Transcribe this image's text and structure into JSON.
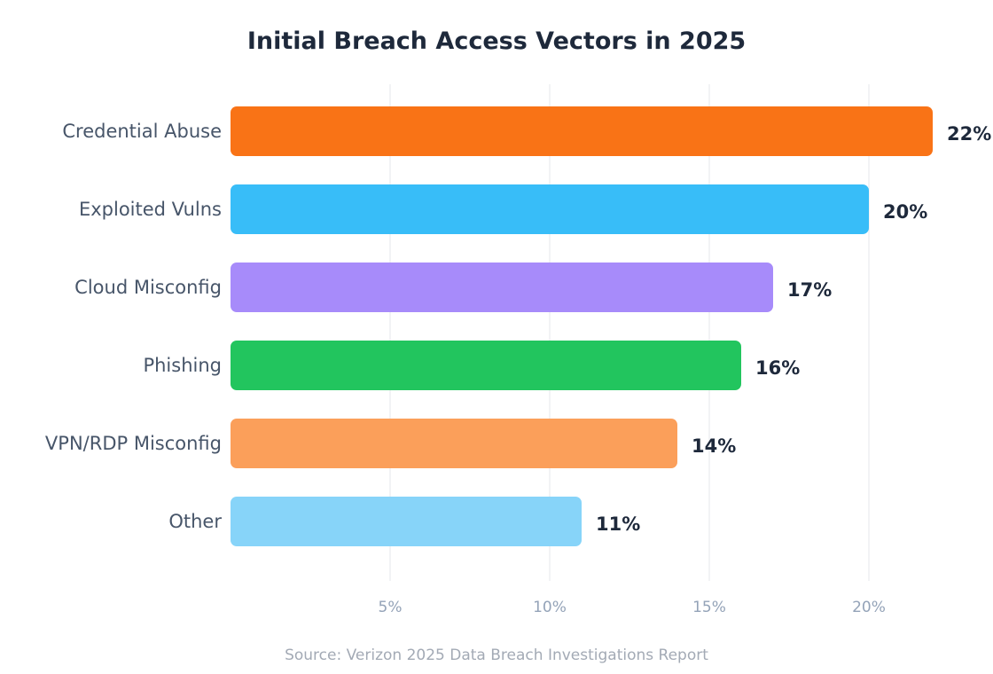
{
  "chart_data": {
    "type": "bar",
    "orientation": "horizontal",
    "title": "Initial Breach Access Vectors in 2025",
    "categories": [
      "Credential Abuse",
      "Exploited Vulns",
      "Cloud Misconfig",
      "Phishing",
      "VPN/RDP Misconfig",
      "Other"
    ],
    "values": [
      22,
      20,
      17,
      16,
      14,
      11
    ],
    "value_labels": [
      "22%",
      "20%",
      "17%",
      "16%",
      "14%",
      "11%"
    ],
    "colors": [
      "#f97316",
      "#38bdf8",
      "#a78bfa",
      "#22c55e",
      "#fb9f5a",
      "#87d4f9"
    ],
    "xticks": [
      5,
      10,
      15,
      20
    ],
    "xtick_labels": [
      "5%",
      "10%",
      "15%",
      "20%"
    ],
    "xlim": [
      0,
      22
    ],
    "grid": true,
    "source": "Source: Verizon 2025 Data Breach Investigations Report"
  }
}
